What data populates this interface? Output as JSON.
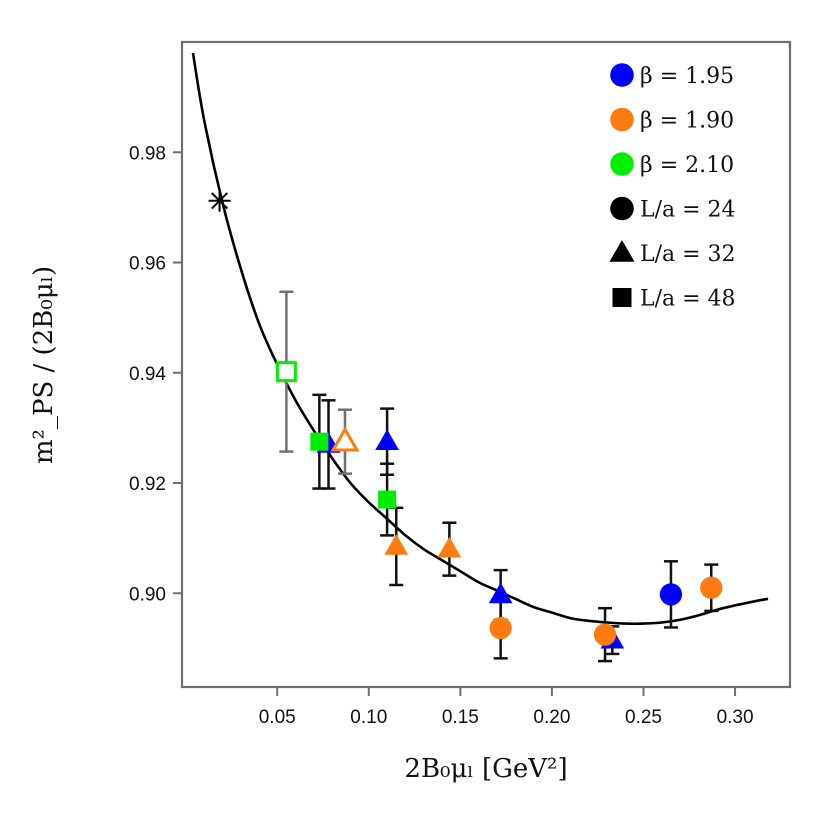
{
  "chart_data": {
    "type": "scatter",
    "title": "",
    "xlabel": "2B₀μₗ [GeV²]",
    "ylabel": "m²_PS / (2B₀μₗ)",
    "xlim": [
      -0.002,
      0.33
    ],
    "ylim": [
      0.883,
      1.0
    ],
    "xticks": [
      "0.05",
      "0.10",
      "0.15",
      "0.20",
      "0.25",
      "0.30"
    ],
    "yticks": [
      "0.90",
      "0.92",
      "0.94",
      "0.96",
      "0.98"
    ],
    "colors": {
      "b195": "#0000ff",
      "b190": "#ff7a0f",
      "b210": "#00ee00"
    },
    "legend": {
      "position": "top-right",
      "entries": [
        {
          "label": "β = 1.95",
          "marker": "circle",
          "color": "#0000ff"
        },
        {
          "label": "β = 1.90",
          "marker": "circle",
          "color": "#ff7a0f"
        },
        {
          "label": "β = 2.10",
          "marker": "circle",
          "color": "#00ee00"
        },
        {
          "label": "L/a = 24",
          "marker": "circle",
          "color": "#000000"
        },
        {
          "label": "L/a = 32",
          "marker": "triangle",
          "color": "#000000"
        },
        {
          "label": "L/a = 48",
          "marker": "square",
          "color": "#000000"
        }
      ]
    },
    "fit_curve": {
      "x": [
        0.004,
        0.01,
        0.02,
        0.03,
        0.04,
        0.05,
        0.06,
        0.07,
        0.08,
        0.09,
        0.1,
        0.11,
        0.12,
        0.13,
        0.14,
        0.15,
        0.16,
        0.17,
        0.18,
        0.19,
        0.2,
        0.21,
        0.22,
        0.23,
        0.24,
        0.25,
        0.26,
        0.27,
        0.28,
        0.29,
        0.3,
        0.31,
        0.318
      ],
      "y": [
        0.998,
        0.986,
        0.971,
        0.959,
        0.949,
        0.9415,
        0.935,
        0.9295,
        0.9245,
        0.92,
        0.9165,
        0.9135,
        0.9105,
        0.908,
        0.906,
        0.904,
        0.902,
        0.9005,
        0.899,
        0.8975,
        0.8965,
        0.8955,
        0.895,
        0.8947,
        0.8945,
        0.8945,
        0.8947,
        0.8952,
        0.896,
        0.897,
        0.8978,
        0.8985,
        0.899
      ]
    },
    "physical_point": {
      "x": 0.0185,
      "y": 0.9712
    },
    "points": [
      {
        "beta": "1.95",
        "L": 24,
        "marker": "circle",
        "open": false,
        "x": 0.265,
        "y": 0.8998,
        "err": 0.006
      },
      {
        "beta": "1.95",
        "L": 32,
        "marker": "triangle",
        "open": false,
        "x": 0.078,
        "y": 0.927,
        "err": 0.008
      },
      {
        "beta": "1.95",
        "L": 32,
        "marker": "triangle",
        "open": false,
        "x": 0.11,
        "y": 0.9275,
        "err": 0.006
      },
      {
        "beta": "1.95",
        "L": 32,
        "marker": "triangle",
        "open": false,
        "x": 0.172,
        "y": 0.8997,
        "err": 0.0045
      },
      {
        "beta": "1.95",
        "L": 32,
        "marker": "triangle",
        "open": false,
        "x": 0.233,
        "y": 0.8915,
        "err": 0.0025
      },
      {
        "beta": "1.90",
        "L": 24,
        "marker": "circle",
        "open": false,
        "x": 0.172,
        "y": 0.8937,
        "err": 0.0055
      },
      {
        "beta": "1.90",
        "L": 24,
        "marker": "circle",
        "open": false,
        "x": 0.229,
        "y": 0.8925,
        "err": 0.0048
      },
      {
        "beta": "1.90",
        "L": 24,
        "marker": "circle",
        "open": false,
        "x": 0.287,
        "y": 0.901,
        "err": 0.0042
      },
      {
        "beta": "1.90",
        "L": 32,
        "marker": "triangle",
        "open": true,
        "x": 0.087,
        "y": 0.9275,
        "err": 0.0058
      },
      {
        "beta": "1.90",
        "L": 32,
        "marker": "triangle",
        "open": false,
        "x": 0.115,
        "y": 0.9085,
        "err": 0.007
      },
      {
        "beta": "1.90",
        "L": 32,
        "marker": "triangle",
        "open": false,
        "x": 0.144,
        "y": 0.908,
        "err": 0.0048
      },
      {
        "beta": "2.10",
        "L": 48,
        "marker": "square",
        "open": true,
        "x": 0.055,
        "y": 0.9402,
        "err": 0.0145
      },
      {
        "beta": "2.10",
        "L": 48,
        "marker": "square",
        "open": false,
        "x": 0.073,
        "y": 0.9275,
        "err": 0.0085
      },
      {
        "beta": "2.10",
        "L": 48,
        "marker": "square",
        "open": false,
        "x": 0.11,
        "y": 0.917,
        "err": 0.0065
      }
    ]
  }
}
